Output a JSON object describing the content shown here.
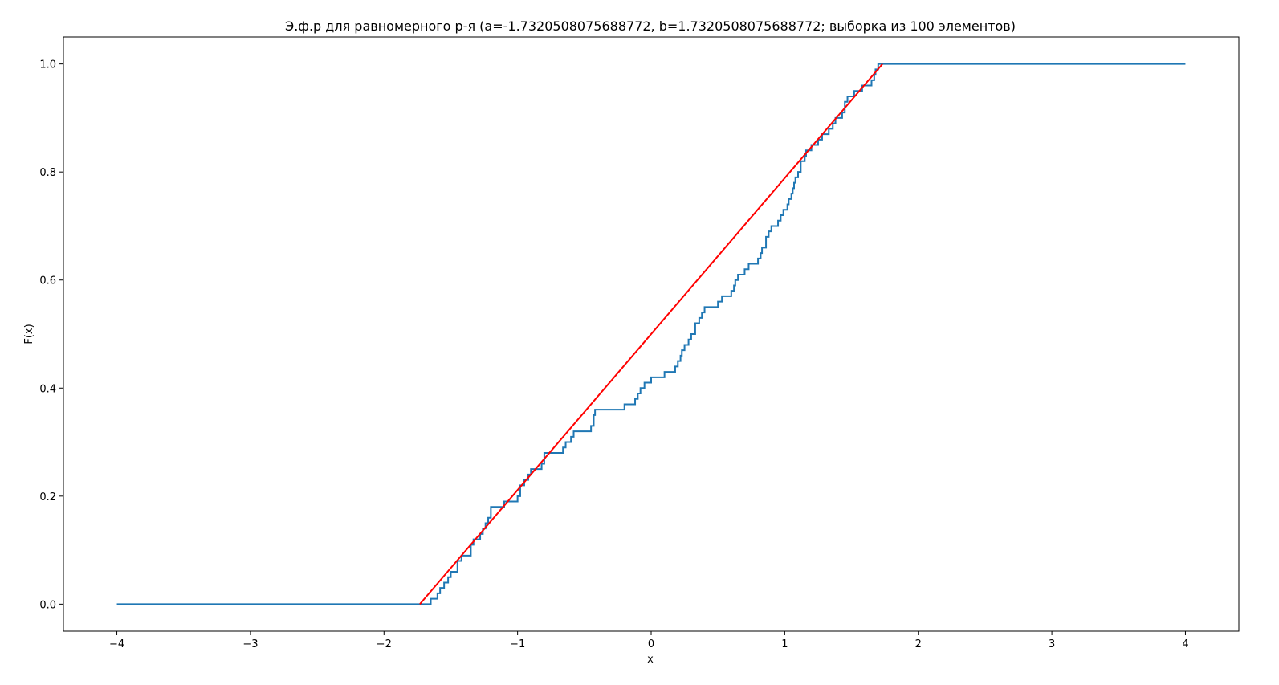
{
  "chart_data": {
    "type": "line",
    "title": "Э.ф.р для равномерного р-я (a=-1.7320508075688772, b=1.7320508075688772; выборка из 100 элементов)",
    "xlabel": "x",
    "ylabel": "F(x)",
    "xlim": [
      -4.4,
      4.4
    ],
    "ylim": [
      -0.05,
      1.05
    ],
    "grid": false,
    "legend": "none",
    "x_ticks": [
      -4,
      -3,
      -2,
      -1,
      0,
      1,
      2,
      3,
      4
    ],
    "x_tick_labels": [
      "−4",
      "−3",
      "−2",
      "−1",
      "0",
      "1",
      "2",
      "3",
      "4"
    ],
    "y_ticks": [
      0.0,
      0.2,
      0.4,
      0.6,
      0.8,
      1.0
    ],
    "y_tick_labels": [
      "0.0",
      "0.2",
      "0.4",
      "0.6",
      "0.8",
      "1.0"
    ],
    "series": [
      {
        "kind": "step",
        "color": "#1f77b4",
        "x": [
          -4.0,
          -1.65,
          -1.6,
          -1.58,
          -1.55,
          -1.52,
          -1.5,
          -1.45,
          -1.42,
          -1.35,
          -1.33,
          -1.28,
          -1.26,
          -1.24,
          -1.22,
          -1.2,
          -1.1,
          -1.0,
          -0.98,
          -0.95,
          -0.92,
          -0.9,
          -0.82,
          -0.8,
          -0.66,
          -0.64,
          -0.6,
          -0.58,
          -0.45,
          -0.43,
          -0.42,
          -0.2,
          -0.12,
          -0.1,
          -0.08,
          -0.05,
          0.0,
          0.1,
          0.18,
          0.2,
          0.22,
          0.23,
          0.25,
          0.28,
          0.3,
          0.33,
          0.36,
          0.38,
          0.4,
          0.5,
          0.53,
          0.6,
          0.62,
          0.63,
          0.65,
          0.7,
          0.73,
          0.8,
          0.82,
          0.83,
          0.86,
          0.88,
          0.9,
          0.95,
          0.97,
          0.99,
          1.02,
          1.03,
          1.05,
          1.06,
          1.07,
          1.08,
          1.1,
          1.12,
          1.15,
          1.16,
          1.2,
          1.25,
          1.28,
          1.33,
          1.36,
          1.38,
          1.43,
          1.45,
          1.47,
          1.52,
          1.58,
          1.65,
          1.67,
          1.68,
          1.7,
          4.0
        ],
        "y": [
          0.0,
          0.01,
          0.02,
          0.03,
          0.04,
          0.05,
          0.06,
          0.08,
          0.09,
          0.11,
          0.12,
          0.13,
          0.14,
          0.15,
          0.16,
          0.18,
          0.19,
          0.2,
          0.22,
          0.23,
          0.24,
          0.25,
          0.26,
          0.28,
          0.29,
          0.3,
          0.31,
          0.32,
          0.33,
          0.35,
          0.36,
          0.37,
          0.38,
          0.39,
          0.4,
          0.41,
          0.42,
          0.43,
          0.44,
          0.45,
          0.46,
          0.47,
          0.48,
          0.49,
          0.5,
          0.52,
          0.53,
          0.54,
          0.55,
          0.56,
          0.57,
          0.58,
          0.59,
          0.6,
          0.61,
          0.62,
          0.63,
          0.64,
          0.65,
          0.66,
          0.68,
          0.69,
          0.7,
          0.71,
          0.72,
          0.73,
          0.74,
          0.75,
          0.76,
          0.77,
          0.78,
          0.79,
          0.8,
          0.82,
          0.83,
          0.84,
          0.85,
          0.86,
          0.87,
          0.88,
          0.89,
          0.9,
          0.91,
          0.93,
          0.94,
          0.95,
          0.96,
          0.97,
          0.98,
          0.99,
          1.0,
          1.0
        ]
      },
      {
        "kind": "line",
        "color": "#ff0000",
        "x": [
          -1.7320508075688772,
          1.7320508075688772
        ],
        "y": [
          0.0,
          1.0
        ]
      }
    ]
  }
}
